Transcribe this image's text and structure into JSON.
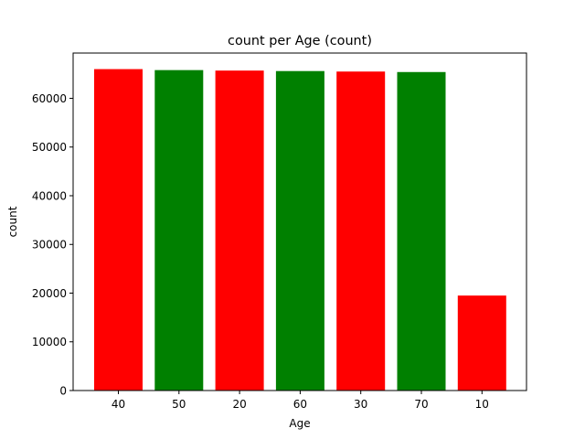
{
  "chart_data": {
    "type": "bar",
    "title": "count per Age (count)",
    "xlabel": "Age",
    "ylabel": "count",
    "categories": [
      "40",
      "50",
      "20",
      "60",
      "30",
      "70",
      "10"
    ],
    "values": [
      66000,
      65800,
      65700,
      65600,
      65500,
      65400,
      19500
    ],
    "bar_colors": [
      "#ff0000",
      "#008000",
      "#ff0000",
      "#008000",
      "#ff0000",
      "#008000",
      "#ff0000"
    ],
    "ylim": [
      0,
      69300
    ],
    "yticks": [
      0,
      10000,
      20000,
      30000,
      40000,
      50000,
      60000
    ],
    "grid": false,
    "legend": "none"
  }
}
